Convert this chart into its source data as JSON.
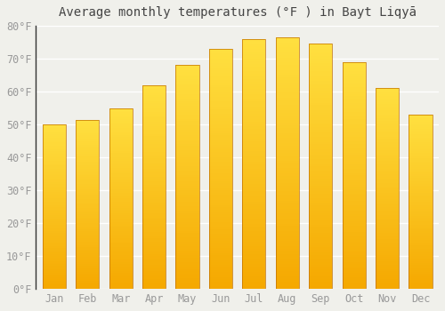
{
  "title": "Average monthly temperatures (°F ) in Bayt Liqyā",
  "months": [
    "Jan",
    "Feb",
    "Mar",
    "Apr",
    "May",
    "Jun",
    "Jul",
    "Aug",
    "Sep",
    "Oct",
    "Nov",
    "Dec"
  ],
  "values": [
    50,
    51.5,
    55,
    62,
    68,
    73,
    76,
    76.5,
    74.5,
    69,
    61,
    53
  ],
  "bar_color_bottom": "#F5A800",
  "bar_color_top": "#FFE040",
  "background_color": "#f0f0eb",
  "ylim": [
    0,
    80
  ],
  "yticks": [
    0,
    10,
    20,
    30,
    40,
    50,
    60,
    70,
    80
  ],
  "ylabel_suffix": "°F",
  "grid_color": "#ffffff",
  "title_fontsize": 10,
  "tick_fontsize": 8.5,
  "tick_color": "#999999",
  "bar_edge_color": "#c07000",
  "bar_width": 0.7,
  "left_spine_color": "#333333"
}
